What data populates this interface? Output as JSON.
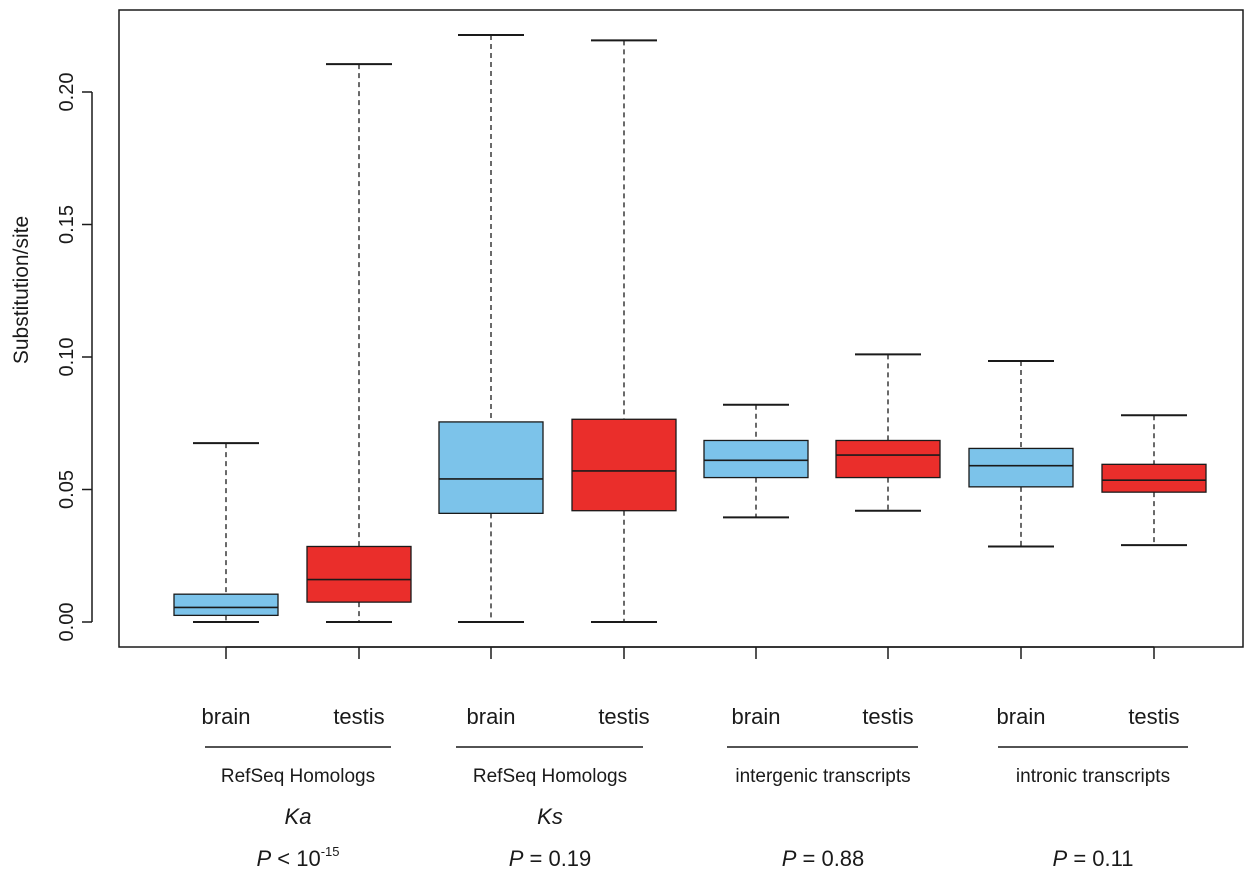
{
  "chart_data": {
    "type": "boxplot",
    "ylabel": "Substitution/site",
    "ylim": [
      -0.01,
      0.232
    ],
    "yticks": [
      0.0,
      0.05,
      0.1,
      0.15,
      0.2
    ],
    "ytick_labels": [
      "0.00",
      "0.05",
      "0.10",
      "0.15",
      "0.20"
    ],
    "grid": false,
    "colors": {
      "brain": "#7cc3ea",
      "testis": "#ea2e2b"
    },
    "boxes": [
      {
        "label": "brain",
        "tissue": "brain",
        "whisker_low": 0.0,
        "q1": 0.0025,
        "median": 0.0055,
        "q3": 0.0105,
        "whisker_high": 0.0675
      },
      {
        "label": "testis",
        "tissue": "testis",
        "whisker_low": 0.0,
        "q1": 0.0075,
        "median": 0.016,
        "q3": 0.0285,
        "whisker_high": 0.2105
      },
      {
        "label": "brain",
        "tissue": "brain",
        "whisker_low": 0.0,
        "q1": 0.041,
        "median": 0.054,
        "q3": 0.0755,
        "whisker_high": 0.2215
      },
      {
        "label": "testis",
        "tissue": "testis",
        "whisker_low": 0.0,
        "q1": 0.042,
        "median": 0.057,
        "q3": 0.0765,
        "whisker_high": 0.2195
      },
      {
        "label": "brain",
        "tissue": "brain",
        "whisker_low": 0.0395,
        "q1": 0.0545,
        "median": 0.061,
        "q3": 0.0685,
        "whisker_high": 0.082
      },
      {
        "label": "testis",
        "tissue": "testis",
        "whisker_low": 0.042,
        "q1": 0.0545,
        "median": 0.063,
        "q3": 0.0685,
        "whisker_high": 0.101
      },
      {
        "label": "brain",
        "tissue": "brain",
        "whisker_low": 0.0285,
        "q1": 0.051,
        "median": 0.059,
        "q3": 0.0655,
        "whisker_high": 0.0985
      },
      {
        "label": "testis",
        "tissue": "testis",
        "whisker_low": 0.029,
        "q1": 0.049,
        "median": 0.0535,
        "q3": 0.0595,
        "whisker_high": 0.078
      }
    ],
    "groups": [
      {
        "label": "RefSeq Homologs",
        "measure": "Ka",
        "p_prefix": "P",
        "p_text": " < 10",
        "p_sup": "-15"
      },
      {
        "label": "RefSeq Homologs",
        "measure": "Ks",
        "p_prefix": "P",
        "p_text": " = 0.19",
        "p_sup": ""
      },
      {
        "label": "intergenic transcripts",
        "measure": "",
        "p_prefix": "P",
        "p_text": " = 0.88",
        "p_sup": ""
      },
      {
        "label": "intronic transcripts",
        "measure": "",
        "p_prefix": "P",
        "p_text": " = 0.11",
        "p_sup": ""
      }
    ]
  }
}
